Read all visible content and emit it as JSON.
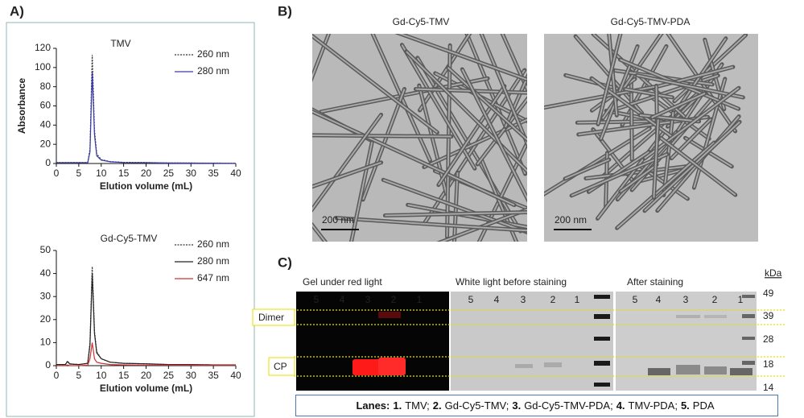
{
  "panels": {
    "a": "A)",
    "b": "B)",
    "c": "C)"
  },
  "chart_data": [
    {
      "type": "line",
      "title": "TMV",
      "x_label": "Elution volume (mL)",
      "y_label": "Absorbance",
      "x": [
        0,
        5,
        7,
        7.5,
        8,
        8.5,
        9,
        10,
        12,
        15,
        20,
        25,
        30,
        35,
        40
      ],
      "series": [
        {
          "name": "260 nm",
          "color": "#333333",
          "line_style": "dotted",
          "values": [
            1,
            1,
            1,
            15,
            113,
            35,
            10,
            4,
            2,
            1.2,
            1,
            0.6,
            0.5,
            0.4,
            0.3
          ]
        },
        {
          "name": "280 nm",
          "color": "#3a3aa8",
          "line_style": "solid",
          "values": [
            0.8,
            0.8,
            0.8,
            12,
            95,
            30,
            8,
            3.5,
            1.8,
            1,
            0.8,
            0.5,
            0.4,
            0.3,
            0.2
          ]
        }
      ],
      "xlim": [
        0,
        40
      ],
      "xticks": [
        0,
        5,
        10,
        15,
        20,
        25,
        30,
        35,
        40
      ],
      "ylim": [
        0,
        120
      ],
      "yticks": [
        0,
        20,
        40,
        60,
        80,
        100,
        120
      ]
    },
    {
      "type": "line",
      "title": "Gd-Cy5-TMV",
      "x_label": "Elution volume (mL)",
      "x": [
        0,
        2,
        2.5,
        3,
        5,
        7,
        7.5,
        8,
        8.5,
        9,
        10,
        12,
        15,
        20,
        25,
        30,
        35,
        40
      ],
      "series": [
        {
          "name": "260 nm",
          "color": "#333333",
          "line_style": "dotted",
          "values": [
            0.5,
            0.5,
            2,
            0.8,
            0.5,
            1,
            10,
            43,
            15,
            6,
            3,
            1.5,
            1,
            0.8,
            0.5,
            0.5,
            0.3,
            0.3
          ]
        },
        {
          "name": "280 nm",
          "color": "#222222",
          "line_style": "solid",
          "values": [
            0.5,
            0.5,
            1.8,
            0.7,
            0.5,
            1,
            9,
            40,
            14,
            5.5,
            3,
            1.5,
            1,
            0.8,
            0.5,
            0.5,
            0.3,
            0.3
          ]
        },
        {
          "name": "647 nm",
          "color": "#d03030",
          "line_style": "solid",
          "values": [
            0,
            0,
            0.3,
            0,
            0,
            0.2,
            3,
            10,
            3,
            1.5,
            1,
            0.5,
            0.3,
            0.2,
            0.2,
            0.2,
            0.1,
            0.1
          ]
        }
      ],
      "xlim": [
        0,
        40
      ],
      "xticks": [
        0,
        5,
        10,
        15,
        20,
        25,
        30,
        35,
        40
      ],
      "ylim": [
        0,
        50
      ],
      "yticks": [
        0,
        10,
        20,
        30,
        40,
        50
      ]
    }
  ],
  "micrographs": [
    {
      "title": "Gd-Cy5-TMV",
      "scale_bar": "200 nm"
    },
    {
      "title": "Gd-Cy5-TMV-PDA",
      "scale_bar": "200 nm"
    }
  ],
  "gel": {
    "panels": [
      {
        "title": "Gel under red light",
        "lanes": [
          "5",
          "4",
          "3",
          "2",
          "1"
        ]
      },
      {
        "title": "White light before staining",
        "lanes": [
          "5",
          "4",
          "3",
          "2",
          "1"
        ]
      },
      {
        "title": "After staining",
        "lanes": [
          "5",
          "4",
          "3",
          "2",
          "1"
        ]
      }
    ],
    "bands": [
      "Dimer",
      "CP"
    ],
    "unit": "kDa",
    "markers": [
      "49",
      "39",
      "28",
      "18",
      "14"
    ],
    "lanes_legend": {
      "title": "Lanes:",
      "items": [
        {
          "number": "1.",
          "label": "TMV;"
        },
        {
          "number": "2.",
          "label": "Gd-Cy5-TMV;"
        },
        {
          "number": "3.",
          "label": "Gd-Cy5-TMV-PDA;"
        },
        {
          "number": "4.",
          "label": "TMV-PDA;"
        },
        {
          "number": "5.",
          "label": "PDA"
        }
      ]
    }
  }
}
